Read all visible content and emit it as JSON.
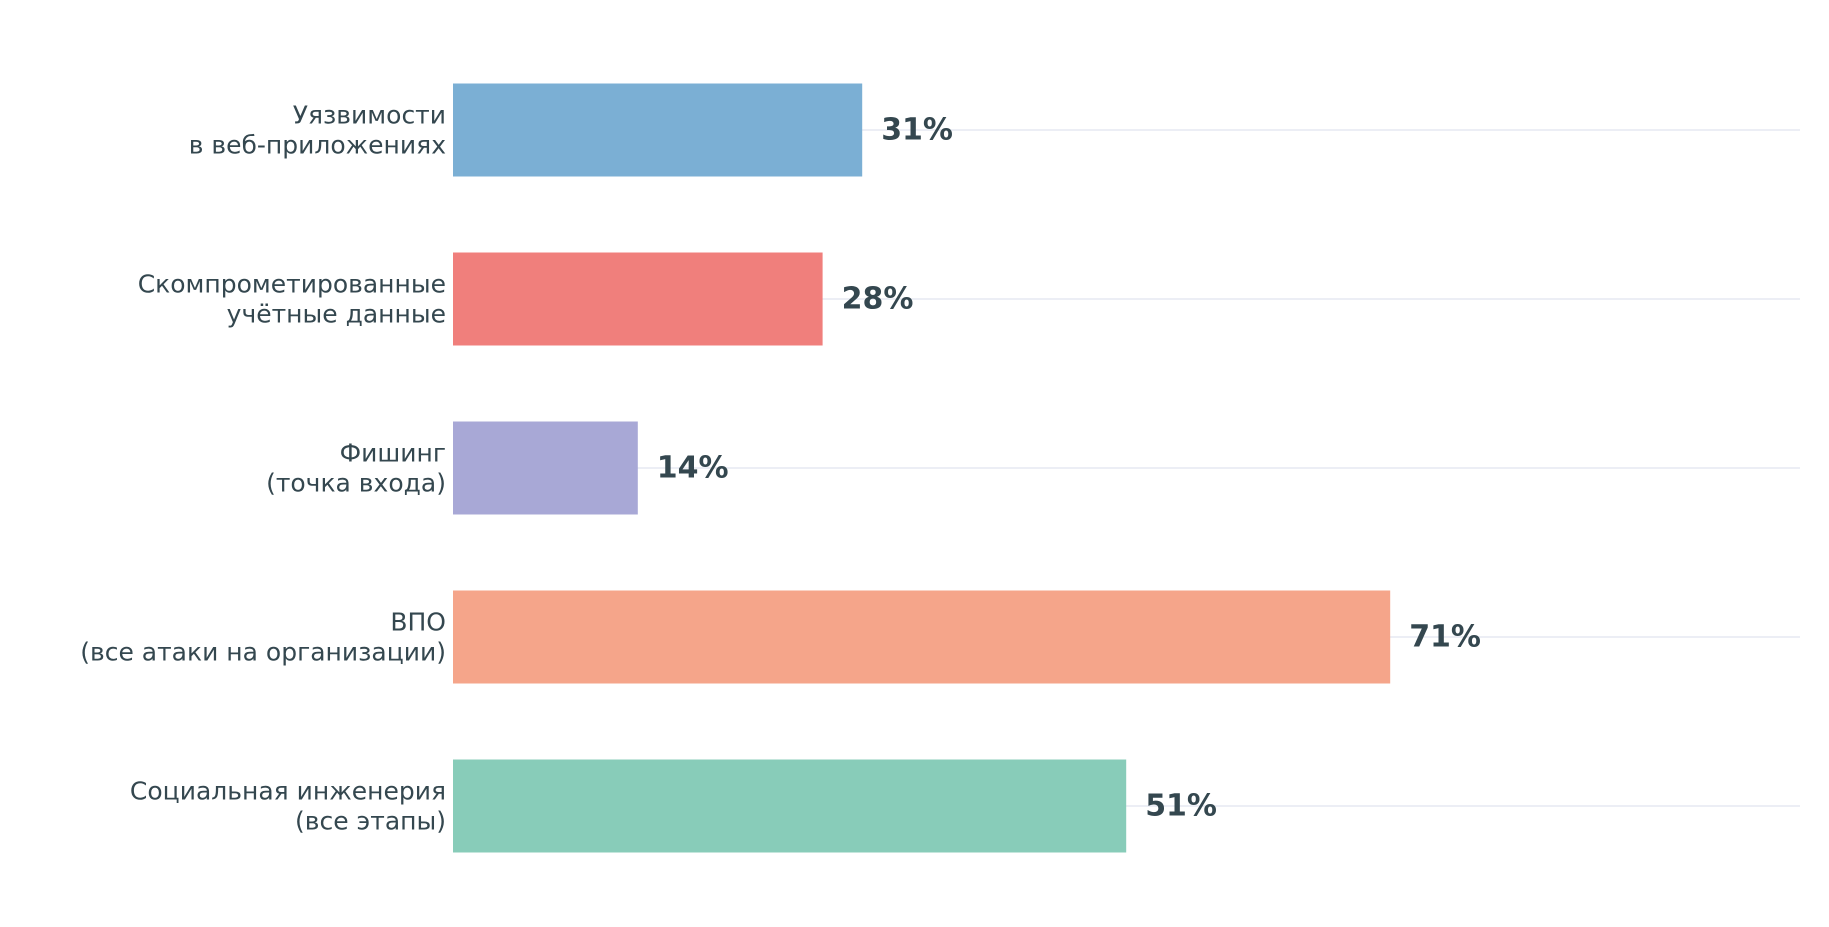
{
  "chart_data": {
    "type": "bar",
    "orientation": "horizontal",
    "categories": [
      [
        "Уязвимости",
        "в веб-приложениях"
      ],
      [
        "Скомпрометированные",
        "учётные данные"
      ],
      [
        "Фишинг",
        "(точка входа)"
      ],
      [
        "ВПО",
        "(все атаки на организации)"
      ],
      [
        "Социальная инженерия",
        "(все этапы)"
      ]
    ],
    "values": [
      31,
      28,
      14,
      71,
      51
    ],
    "value_labels": [
      "31%",
      "28%",
      "14%",
      "71%",
      "51%"
    ],
    "colors": [
      "#7bafd4",
      "#f07f7c",
      "#a8a8d6",
      "#f5a58a",
      "#88ccb9"
    ],
    "xlim": [
      0,
      85
    ],
    "title": "",
    "xlabel": "",
    "ylabel": "",
    "grid": "horizontal lines at category positions",
    "legend": "none"
  }
}
